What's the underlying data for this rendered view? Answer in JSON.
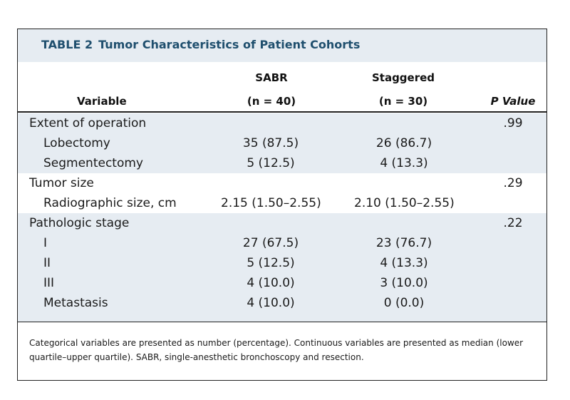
{
  "table": {
    "label": "TABLE 2",
    "title": "Tumor Characteristics of Patient Cohorts",
    "headers": {
      "variable": "Variable",
      "sabr_name": "SABR",
      "sabr_n": "(n = 40)",
      "staggered_name": "Staggered",
      "staggered_n": "(n = 30)",
      "p_value": "P Value"
    },
    "rows": [
      {
        "variable": "Extent of operation",
        "sabr": "",
        "staggered": "",
        "p": ".99"
      },
      {
        "variable": "Lobectomy",
        "sabr": "35 (87.5)",
        "staggered": "26 (86.7)",
        "p": ""
      },
      {
        "variable": "Segmentectomy",
        "sabr": "5 (12.5)",
        "staggered": "4 (13.3)",
        "p": ""
      },
      {
        "variable": "Tumor size",
        "sabr": "",
        "staggered": "",
        "p": ".29"
      },
      {
        "variable": "Radiographic size, cm",
        "sabr": "2.15 (1.50–2.55)",
        "staggered": "2.10 (1.50–2.55)",
        "p": ""
      },
      {
        "variable": "Pathologic stage",
        "sabr": "",
        "staggered": "",
        "p": ".22"
      },
      {
        "variable": "I",
        "sabr": "27 (67.5)",
        "staggered": "23 (76.7)",
        "p": ""
      },
      {
        "variable": "II",
        "sabr": "5 (12.5)",
        "staggered": "4 (13.3)",
        "p": ""
      },
      {
        "variable": "III",
        "sabr": "4 (10.0)",
        "staggered": "3 (10.0)",
        "p": ""
      },
      {
        "variable": "Metastasis",
        "sabr": "4 (10.0)",
        "staggered": "0 (0.0)",
        "p": ""
      }
    ],
    "footnote": "Categorical variables are presented as number (percentage). Continuous variables are presented as median (lower quartile–upper quartile). SABR, single-anesthetic bronchoscopy and resection."
  }
}
